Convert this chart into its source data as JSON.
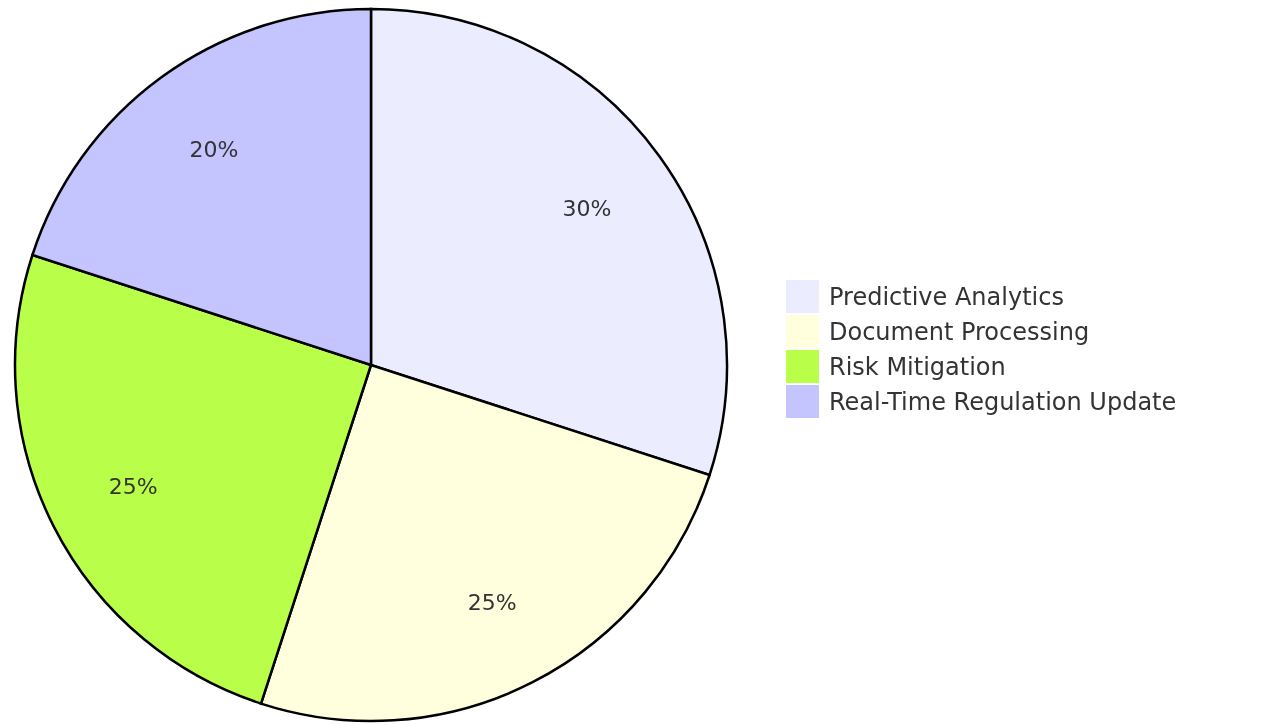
{
  "chart_data": {
    "type": "pie",
    "categories": [
      "Predictive Analytics",
      "Document Processing",
      "Risk Mitigation",
      "Real-Time Regulation Update"
    ],
    "values": [
      30,
      25,
      25,
      20
    ],
    "colors": [
      "#ececff",
      "#ffffde",
      "#b9ff4a",
      "#c4c4ff"
    ],
    "value_labels": [
      "30%",
      "25%",
      "25%",
      "20%"
    ],
    "legend": "right"
  }
}
